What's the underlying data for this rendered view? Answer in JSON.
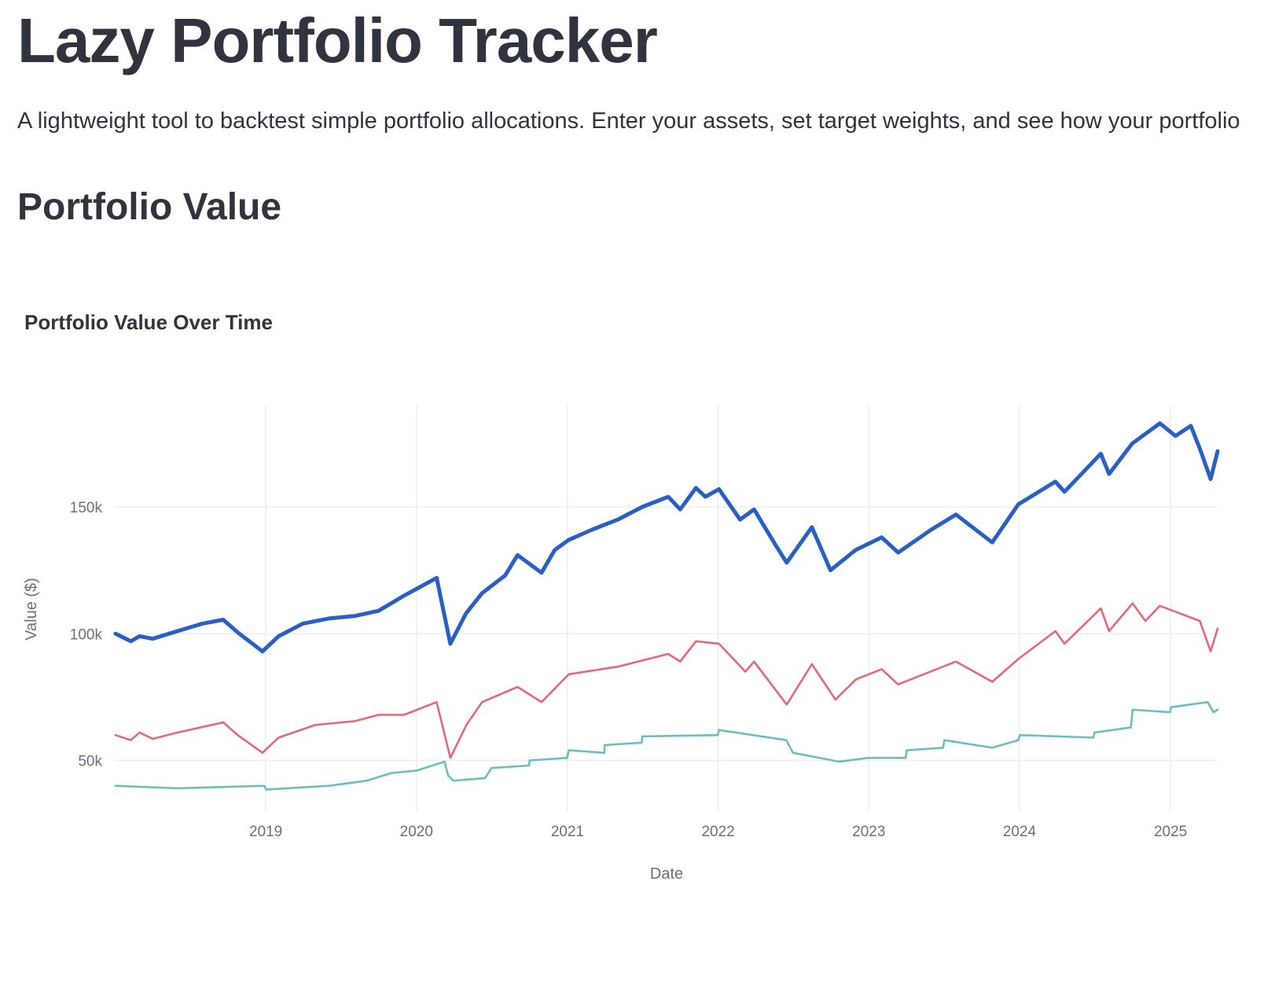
{
  "header": {
    "title": "Lazy Portfolio Tracker",
    "description": "A lightweight tool to backtest simple portfolio allocations. Enter your assets, set target weights, and see how your portfolio"
  },
  "section": {
    "title": "Portfolio Value"
  },
  "chart_data": {
    "type": "line",
    "title": "Portfolio Value Over Time",
    "xlabel": "Date",
    "ylabel": "Value ($)",
    "x_range": [
      "2018-01-02",
      "2025-04-25"
    ],
    "ylim": [
      30000,
      190000
    ],
    "grid": true,
    "legend": "none",
    "x_ticks": [
      "2019",
      "2020",
      "2021",
      "2022",
      "2023",
      "2024",
      "2025"
    ],
    "y_ticks": [
      {
        "value": 50000,
        "label": "50k"
      },
      {
        "value": 100000,
        "label": "100k"
      },
      {
        "value": 150000,
        "label": "150k"
      }
    ],
    "series": [
      {
        "color": "#2a5fc4",
        "points": [
          [
            "2018-01-02",
            100000
          ],
          [
            "2018-02-08",
            97000
          ],
          [
            "2018-03-01",
            99000
          ],
          [
            "2018-04-02",
            98000
          ],
          [
            "2018-06-01",
            101000
          ],
          [
            "2018-08-01",
            104000
          ],
          [
            "2018-09-20",
            105500
          ],
          [
            "2018-10-25",
            100500
          ],
          [
            "2018-12-24",
            93000
          ],
          [
            "2019-02-01",
            99000
          ],
          [
            "2019-04-01",
            104000
          ],
          [
            "2019-06-03",
            106000
          ],
          [
            "2019-08-05",
            107000
          ],
          [
            "2019-10-01",
            109000
          ],
          [
            "2019-12-02",
            115000
          ],
          [
            "2020-02-19",
            122000
          ],
          [
            "2020-03-23",
            96000
          ],
          [
            "2020-04-30",
            108000
          ],
          [
            "2020-06-08",
            116000
          ],
          [
            "2020-08-03",
            123000
          ],
          [
            "2020-09-02",
            131000
          ],
          [
            "2020-10-30",
            124000
          ],
          [
            "2020-12-01",
            133000
          ],
          [
            "2021-01-04",
            137000
          ],
          [
            "2021-03-01",
            141000
          ],
          [
            "2021-05-03",
            145000
          ],
          [
            "2021-07-01",
            150000
          ],
          [
            "2021-09-02",
            154000
          ],
          [
            "2021-10-01",
            149000
          ],
          [
            "2021-11-08",
            157500
          ],
          [
            "2021-12-01",
            154000
          ],
          [
            "2022-01-03",
            157000
          ],
          [
            "2022-02-23",
            145000
          ],
          [
            "2022-03-29",
            149000
          ],
          [
            "2022-05-20",
            135000
          ],
          [
            "2022-06-16",
            128000
          ],
          [
            "2022-08-16",
            142000
          ],
          [
            "2022-09-30",
            125000
          ],
          [
            "2022-11-30",
            133000
          ],
          [
            "2023-02-01",
            138000
          ],
          [
            "2023-03-13",
            132000
          ],
          [
            "2023-06-01",
            141000
          ],
          [
            "2023-07-31",
            147000
          ],
          [
            "2023-10-27",
            136000
          ],
          [
            "2023-12-29",
            151000
          ],
          [
            "2024-03-28",
            160000
          ],
          [
            "2024-04-19",
            156000
          ],
          [
            "2024-07-16",
            171000
          ],
          [
            "2024-08-05",
            163000
          ],
          [
            "2024-09-30",
            175000
          ],
          [
            "2024-12-06",
            183000
          ],
          [
            "2025-01-13",
            178000
          ],
          [
            "2025-02-19",
            182000
          ],
          [
            "2025-03-13",
            173000
          ],
          [
            "2025-04-08",
            161000
          ],
          [
            "2025-04-25",
            172000
          ]
        ]
      },
      {
        "color": "#e8687a",
        "points": [
          [
            "2018-01-02",
            60000
          ],
          [
            "2018-02-08",
            58000
          ],
          [
            "2018-03-01",
            61000
          ],
          [
            "2018-04-02",
            58500
          ],
          [
            "2018-06-01",
            61000
          ],
          [
            "2018-09-20",
            65000
          ],
          [
            "2018-10-25",
            60000
          ],
          [
            "2018-12-24",
            53000
          ],
          [
            "2019-02-01",
            59000
          ],
          [
            "2019-05-01",
            64000
          ],
          [
            "2019-08-05",
            65500
          ],
          [
            "2019-10-01",
            68000
          ],
          [
            "2019-12-02",
            68000
          ],
          [
            "2020-02-19",
            73000
          ],
          [
            "2020-03-23",
            51000
          ],
          [
            "2020-05-01",
            64000
          ],
          [
            "2020-06-08",
            73000
          ],
          [
            "2020-09-02",
            79000
          ],
          [
            "2020-10-30",
            73000
          ],
          [
            "2021-01-04",
            84000
          ],
          [
            "2021-05-03",
            87000
          ],
          [
            "2021-09-02",
            92000
          ],
          [
            "2021-10-01",
            89000
          ],
          [
            "2021-11-08",
            97000
          ],
          [
            "2022-01-03",
            96000
          ],
          [
            "2022-03-08",
            85000
          ],
          [
            "2022-03-29",
            89000
          ],
          [
            "2022-06-16",
            72000
          ],
          [
            "2022-08-16",
            88000
          ],
          [
            "2022-10-12",
            74000
          ],
          [
            "2022-12-01",
            82000
          ],
          [
            "2023-02-01",
            86000
          ],
          [
            "2023-03-13",
            80000
          ],
          [
            "2023-07-31",
            89000
          ],
          [
            "2023-10-27",
            81000
          ],
          [
            "2023-12-29",
            90000
          ],
          [
            "2024-03-28",
            101000
          ],
          [
            "2024-04-19",
            96000
          ],
          [
            "2024-07-16",
            110000
          ],
          [
            "2024-08-05",
            101000
          ],
          [
            "2024-10-01",
            112000
          ],
          [
            "2024-11-01",
            105000
          ],
          [
            "2024-12-06",
            111000
          ],
          [
            "2025-03-13",
            105000
          ],
          [
            "2025-04-08",
            93000
          ],
          [
            "2025-04-25",
            102000
          ]
        ]
      },
      {
        "color": "#6cbfbb",
        "points": [
          [
            "2018-01-02",
            40000
          ],
          [
            "2018-06-01",
            39000
          ],
          [
            "2018-12-28",
            40000
          ],
          [
            "2019-01-02",
            38500
          ],
          [
            "2019-06-03",
            40000
          ],
          [
            "2019-09-03",
            42000
          ],
          [
            "2019-11-01",
            45000
          ],
          [
            "2020-01-02",
            46000
          ],
          [
            "2020-03-09",
            49500
          ],
          [
            "2020-03-18",
            44000
          ],
          [
            "2020-03-31",
            42000
          ],
          [
            "2020-06-15",
            43000
          ],
          [
            "2020-07-01",
            47000
          ],
          [
            "2020-09-30",
            48000
          ],
          [
            "2020-10-01",
            50000
          ],
          [
            "2020-12-31",
            51000
          ],
          [
            "2021-01-04",
            54000
          ],
          [
            "2021-03-31",
            53000
          ],
          [
            "2021-04-01",
            56000
          ],
          [
            "2021-06-30",
            57000
          ],
          [
            "2021-07-01",
            59500
          ],
          [
            "2021-12-31",
            60000
          ],
          [
            "2022-01-03",
            62000
          ],
          [
            "2022-06-15",
            58000
          ],
          [
            "2022-07-01",
            53000
          ],
          [
            "2022-10-21",
            49500
          ],
          [
            "2022-12-30",
            51000
          ],
          [
            "2023-03-31",
            51000
          ],
          [
            "2023-04-03",
            54000
          ],
          [
            "2023-06-30",
            55000
          ],
          [
            "2023-07-03",
            58000
          ],
          [
            "2023-10-27",
            55000
          ],
          [
            "2023-12-29",
            58000
          ],
          [
            "2024-01-02",
            60000
          ],
          [
            "2024-06-28",
            59000
          ],
          [
            "2024-07-01",
            61000
          ],
          [
            "2024-09-27",
            63000
          ],
          [
            "2024-10-01",
            70000
          ],
          [
            "2024-12-31",
            69000
          ],
          [
            "2025-01-02",
            71000
          ],
          [
            "2025-04-01",
            73000
          ],
          [
            "2025-04-15",
            69000
          ],
          [
            "2025-04-25",
            70000
          ]
        ]
      }
    ]
  }
}
